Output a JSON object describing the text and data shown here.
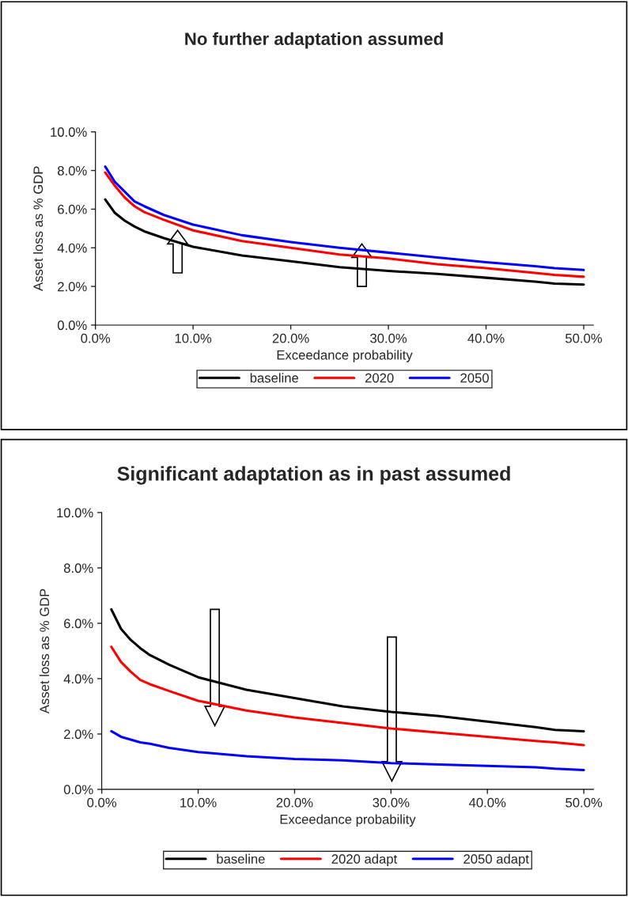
{
  "chart_data": [
    {
      "type": "line",
      "title": "No further adaptation assumed",
      "xlabel": "Exceedance probability",
      "ylabel": "Asset loss as % GDP",
      "x": [
        1,
        2,
        3,
        4,
        5,
        7,
        10,
        15,
        20,
        25,
        30,
        35,
        40,
        45,
        47,
        50
      ],
      "series": [
        {
          "name": "baseline",
          "color": "#000000",
          "values": [
            6.5,
            5.8,
            5.4,
            5.1,
            4.85,
            4.5,
            4.05,
            3.6,
            3.3,
            3.0,
            2.8,
            2.65,
            2.45,
            2.25,
            2.15,
            2.1
          ]
        },
        {
          "name": "2020",
          "color": "#ff0000",
          "values": [
            7.9,
            7.2,
            6.6,
            6.15,
            5.85,
            5.45,
            4.9,
            4.35,
            4.0,
            3.65,
            3.45,
            3.15,
            2.95,
            2.7,
            2.6,
            2.5
          ]
        },
        {
          "name": "2050",
          "color": "#0000ff",
          "values": [
            8.2,
            7.4,
            6.9,
            6.4,
            6.15,
            5.7,
            5.2,
            4.65,
            4.3,
            4.0,
            3.75,
            3.5,
            3.25,
            3.05,
            2.95,
            2.85
          ]
        }
      ],
      "xlim": [
        0,
        51
      ],
      "xticks": [
        {
          "value": 0,
          "label": "0.0%"
        },
        {
          "value": 10,
          "label": "10.0%"
        },
        {
          "value": 20,
          "label": "20.0%"
        },
        {
          "value": 30,
          "label": "30.0%"
        },
        {
          "value": 40,
          "label": "40.0%"
        },
        {
          "value": 50,
          "label": "50.0%"
        }
      ],
      "ylim": [
        0,
        10
      ],
      "yticks": [
        {
          "value": 0,
          "label": "0.0%"
        },
        {
          "value": 2,
          "label": "2.0%"
        },
        {
          "value": 4,
          "label": "4.0%"
        },
        {
          "value": 6,
          "label": "6.0%"
        },
        {
          "value": 8,
          "label": "8.0%"
        },
        {
          "value": 10,
          "label": "10.0%"
        }
      ],
      "grid": false,
      "legend": "bottom",
      "marker": "none",
      "line_style": "solid"
    },
    {
      "type": "line",
      "title": "Significant adaptation as in past assumed",
      "xlabel": "Exceedance probability",
      "ylabel": "Asset loss as % GDP",
      "x": [
        1,
        2,
        3,
        4,
        5,
        7,
        10,
        15,
        20,
        25,
        30,
        35,
        40,
        45,
        47,
        50
      ],
      "series": [
        {
          "name": "baseline",
          "color": "#000000",
          "values": [
            6.5,
            5.8,
            5.4,
            5.1,
            4.85,
            4.5,
            4.05,
            3.6,
            3.3,
            3.0,
            2.8,
            2.65,
            2.45,
            2.25,
            2.15,
            2.1
          ]
        },
        {
          "name": "2020 adapt",
          "color": "#ff0000",
          "values": [
            5.15,
            4.6,
            4.25,
            3.95,
            3.8,
            3.55,
            3.2,
            2.85,
            2.6,
            2.4,
            2.2,
            2.05,
            1.9,
            1.75,
            1.7,
            1.6
          ]
        },
        {
          "name": "2050 adapt",
          "color": "#0000ff",
          "values": [
            2.1,
            1.9,
            1.8,
            1.7,
            1.65,
            1.5,
            1.35,
            1.2,
            1.1,
            1.05,
            0.95,
            0.9,
            0.85,
            0.8,
            0.75,
            0.7
          ]
        }
      ],
      "xlim": [
        0,
        51
      ],
      "xticks": [
        {
          "value": 0,
          "label": "0.0%"
        },
        {
          "value": 10,
          "label": "10.0%"
        },
        {
          "value": 20,
          "label": "20.0%"
        },
        {
          "value": 30,
          "label": "30.0%"
        },
        {
          "value": 40,
          "label": "40.0%"
        },
        {
          "value": 50,
          "label": "50.0%"
        }
      ],
      "ylim": [
        0,
        10
      ],
      "yticks": [
        {
          "value": 0,
          "label": "0.0%"
        },
        {
          "value": 2,
          "label": "2.0%"
        },
        {
          "value": 4,
          "label": "4.0%"
        },
        {
          "value": 6,
          "label": "6.0%"
        },
        {
          "value": 8,
          "label": "8.0%"
        },
        {
          "value": 10,
          "label": "10.0%"
        }
      ],
      "grid": false,
      "legend": "bottom",
      "marker": "none",
      "line_style": "solid"
    }
  ]
}
